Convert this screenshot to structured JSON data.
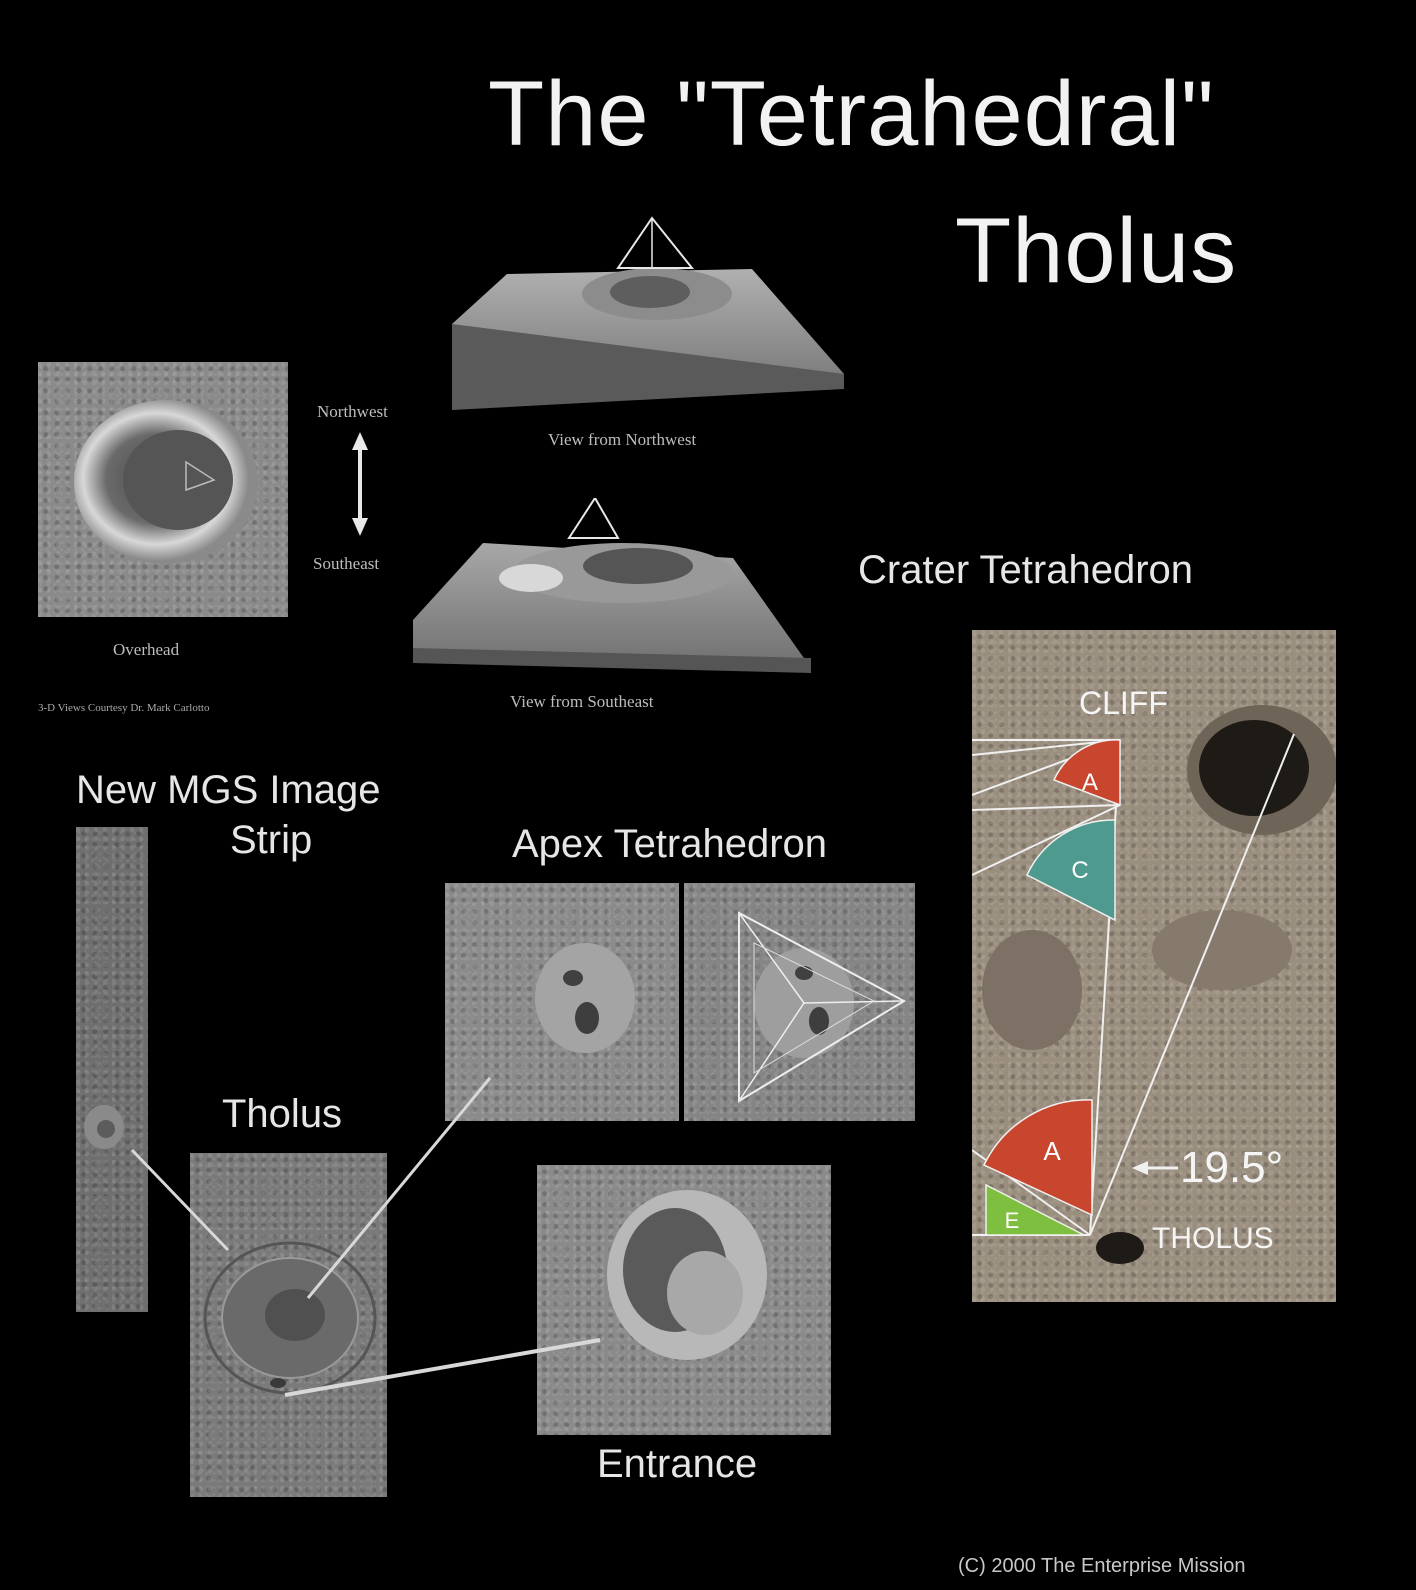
{
  "title": {
    "line1": "The \"Tetrahedral\"",
    "line2": "Tholus"
  },
  "overhead": {
    "compass_top": "Northwest",
    "compass_bottom": "Southeast",
    "caption": "Overhead",
    "credit": "3-D Views Courtesy Dr. Mark Carlotto"
  },
  "views": {
    "northwest_caption": "View from Northwest",
    "southeast_caption": "View from Southeast"
  },
  "mgs": {
    "line1": "New MGS Image",
    "line2": "Strip"
  },
  "apex": {
    "label": "Apex Tetrahedron"
  },
  "tholus_label": "Tholus",
  "entrance_label": "Entrance",
  "crater": {
    "label": "Crater Tetrahedron",
    "cliff": "CLIFF",
    "tholus": "THOLUS",
    "angle": "19.5°",
    "wedges": [
      "A",
      "C",
      "A",
      "E"
    ],
    "colors": {
      "red": "#c8452e",
      "teal": "#4e9a8e",
      "green": "#7fbf3f"
    }
  },
  "copyright": "(C) 2000 The Enterprise Mission"
}
